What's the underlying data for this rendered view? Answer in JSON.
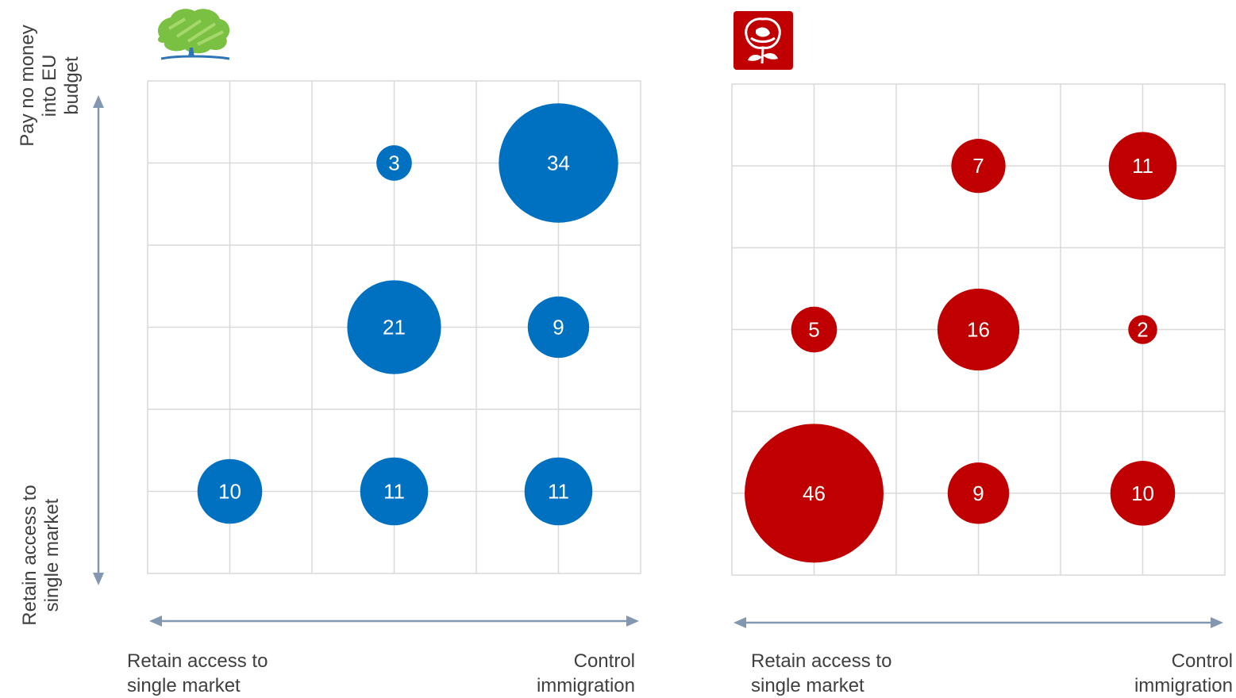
{
  "colors": {
    "conservative": "#0070c0",
    "labour": "#c00000",
    "grid": "#d9d9d9",
    "arrow": "#8497b0",
    "bubble_text": "#ffffff"
  },
  "axes": {
    "y_top_label_lines": [
      "Pay no money",
      "into EU",
      "budget"
    ],
    "y_bottom_label_lines": [
      "Retain access to",
      "single market"
    ],
    "x_left_label_lines": [
      "Retain access to",
      "single market"
    ],
    "x_right_label_lines": [
      "Control",
      "immigration"
    ]
  },
  "logos": [
    "conservative-tree-logo",
    "labour-rose-logo"
  ],
  "chart_data": [
    {
      "type": "scatter",
      "grid": true,
      "xlabel_left": "Retain access to single market",
      "xlabel_right": "Control immigration",
      "ylabel_top": "Pay no money into EU budget",
      "ylabel_bottom": "Retain access to single market",
      "color": "#0070c0",
      "points": [
        {
          "col": 1,
          "row": 0,
          "value": 3
        },
        {
          "col": 2,
          "row": 0,
          "value": 34
        },
        {
          "col": 1,
          "row": 1,
          "value": 21
        },
        {
          "col": 2,
          "row": 1,
          "value": 9
        },
        {
          "col": 0,
          "row": 2,
          "value": 10
        },
        {
          "col": 1,
          "row": 2,
          "value": 11
        },
        {
          "col": 2,
          "row": 2,
          "value": 11
        }
      ]
    },
    {
      "type": "scatter",
      "grid": true,
      "xlabel_left": "Retain access to single market",
      "xlabel_right": "Control immigration",
      "color": "#c00000",
      "points": [
        {
          "col": 1,
          "row": 0,
          "value": 7
        },
        {
          "col": 2,
          "row": 0,
          "value": 11
        },
        {
          "col": 0,
          "row": 1,
          "value": 5
        },
        {
          "col": 1,
          "row": 1,
          "value": 16
        },
        {
          "col": 2,
          "row": 1,
          "value": 2
        },
        {
          "col": 0,
          "row": 2,
          "value": 46
        },
        {
          "col": 1,
          "row": 2,
          "value": 9
        },
        {
          "col": 2,
          "row": 2,
          "value": 10
        }
      ]
    }
  ]
}
